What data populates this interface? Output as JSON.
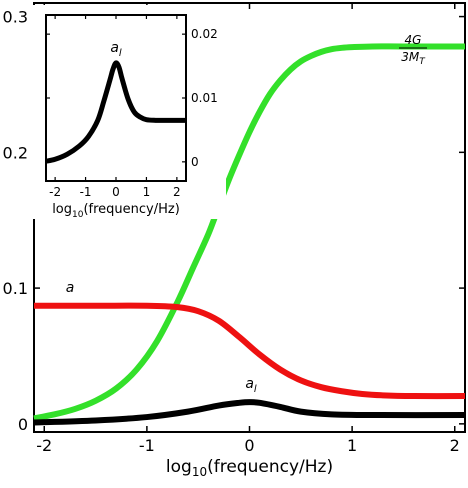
{
  "chart_data": [
    {
      "type": "line",
      "xlabel": {
        "prefix": "log",
        "sub": "10",
        "rest": "(frequency/Hz)"
      },
      "ylabel": "",
      "xlim": [
        -2.1,
        2.1
      ],
      "ylim": [
        -0.006,
        0.31
      ],
      "xticks": [
        -2,
        -1,
        0,
        1,
        2
      ],
      "xtick_labels": [
        "-2",
        "-1",
        "0",
        "1",
        "2"
      ],
      "yticks": [
        0,
        0.1,
        0.2,
        0.3
      ],
      "ytick_labels": [
        "0",
        "0.1",
        "0.2",
        "0.3"
      ],
      "grid": false,
      "series": [
        {
          "color": "#33e02a",
          "label_parts": {
            "numerator": "4G",
            "denominator_main": "3M",
            "denominator_sub": "T"
          },
          "x": [
            -2.1,
            -1.9,
            -1.7,
            -1.5,
            -1.3,
            -1.1,
            -0.9,
            -0.7,
            -0.55,
            -0.4,
            -0.3,
            -0.2,
            -0.1,
            0.0,
            0.1,
            0.2,
            0.3,
            0.4,
            0.5,
            0.6,
            0.7,
            0.8,
            0.9,
            1.0,
            1.2,
            1.5,
            2.1
          ],
          "y": [
            0.004,
            0.007,
            0.011,
            0.017,
            0.026,
            0.04,
            0.061,
            0.09,
            0.115,
            0.14,
            0.16,
            0.18,
            0.198,
            0.215,
            0.23,
            0.243,
            0.253,
            0.261,
            0.267,
            0.271,
            0.274,
            0.276,
            0.277,
            0.2775,
            0.278,
            0.278,
            0.278
          ]
        },
        {
          "color": "#ee1111",
          "label": "a",
          "x": [
            -2.1,
            -1.5,
            -1.0,
            -0.7,
            -0.5,
            -0.3,
            -0.1,
            0.1,
            0.3,
            0.5,
            0.7,
            0.9,
            1.1,
            1.3,
            1.6,
            2.1
          ],
          "y": [
            0.087,
            0.087,
            0.087,
            0.086,
            0.083,
            0.076,
            0.064,
            0.051,
            0.04,
            0.032,
            0.027,
            0.024,
            0.022,
            0.021,
            0.0205,
            0.0205
          ]
        },
        {
          "color": "#000000",
          "label": "a",
          "label_sub": "l",
          "x": [
            -2.1,
            -1.5,
            -1.0,
            -0.6,
            -0.3,
            -0.1,
            0.0,
            0.1,
            0.3,
            0.5,
            0.8,
            1.2,
            2.1
          ],
          "y": [
            0.001,
            0.0025,
            0.005,
            0.009,
            0.0135,
            0.0155,
            0.016,
            0.0155,
            0.0125,
            0.009,
            0.007,
            0.0065,
            0.0065
          ]
        }
      ]
    },
    {
      "type": "line",
      "xlabel": {
        "prefix": "log",
        "sub": "10",
        "rest": "(frequency/Hz)"
      },
      "ylabel": "",
      "xlim": [
        -2.3,
        2.3
      ],
      "ylim": [
        -0.003,
        0.023
      ],
      "xticks": [
        -2,
        -1,
        0,
        1,
        2
      ],
      "xtick_labels": [
        "-2",
        "-1",
        "0",
        "1",
        "2"
      ],
      "yticks": [
        0,
        0.01,
        0.02
      ],
      "ytick_labels": [
        "0",
        "0.01",
        "0.02"
      ],
      "y_axis_side": "right",
      "grid": false,
      "series": [
        {
          "color": "#000000",
          "label": "a",
          "label_sub": "l",
          "x": [
            -2.3,
            -2.0,
            -1.6,
            -1.2,
            -0.9,
            -0.6,
            -0.4,
            -0.2,
            -0.1,
            0.0,
            0.1,
            0.2,
            0.4,
            0.6,
            0.8,
            1.0,
            1.3,
            1.7,
            2.3
          ],
          "y": [
            0.0001,
            0.0004,
            0.0012,
            0.0025,
            0.004,
            0.0065,
            0.0095,
            0.0128,
            0.0145,
            0.0155,
            0.0148,
            0.013,
            0.0098,
            0.0078,
            0.007,
            0.0066,
            0.0065,
            0.0065,
            0.0065
          ]
        }
      ]
    }
  ]
}
